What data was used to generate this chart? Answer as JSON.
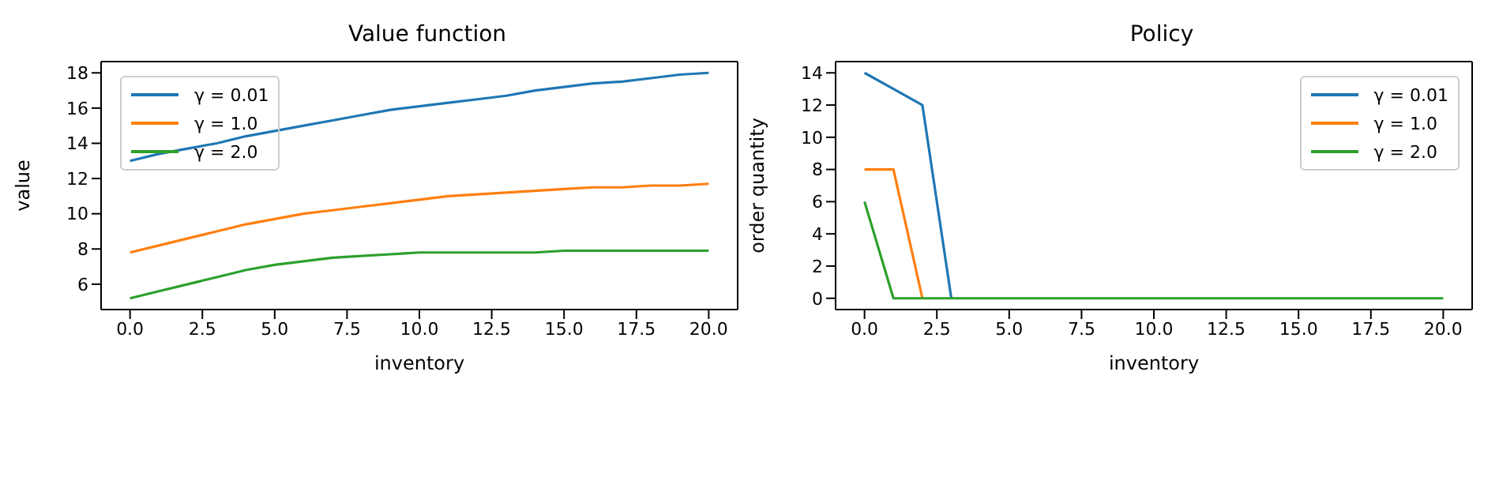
{
  "chart_data": [
    {
      "type": "line",
      "title": "Value function",
      "xlabel": "inventory",
      "ylabel": "value",
      "x": [
        0,
        1,
        2,
        3,
        4,
        5,
        6,
        7,
        8,
        9,
        10,
        11,
        12,
        13,
        14,
        15,
        16,
        17,
        18,
        19,
        20
      ],
      "series": [
        {
          "name": "γ = 0.01",
          "color": "#1f77b4",
          "values": [
            13.0,
            13.4,
            13.7,
            14.0,
            14.4,
            14.7,
            15.0,
            15.3,
            15.6,
            15.9,
            16.1,
            16.3,
            16.5,
            16.7,
            17.0,
            17.2,
            17.4,
            17.5,
            17.7,
            17.9,
            18.0
          ]
        },
        {
          "name": "γ = 1.0",
          "color": "#ff7f0e",
          "values": [
            7.8,
            8.2,
            8.6,
            9.0,
            9.4,
            9.7,
            10.0,
            10.2,
            10.4,
            10.6,
            10.8,
            11.0,
            11.1,
            11.2,
            11.3,
            11.4,
            11.5,
            11.5,
            11.6,
            11.6,
            11.7
          ]
        },
        {
          "name": "γ = 2.0",
          "color": "#2ca02c",
          "values": [
            5.2,
            5.6,
            6.0,
            6.4,
            6.8,
            7.1,
            7.3,
            7.5,
            7.6,
            7.7,
            7.8,
            7.8,
            7.8,
            7.8,
            7.8,
            7.9,
            7.9,
            7.9,
            7.9,
            7.9,
            7.9
          ]
        }
      ],
      "xlim": [
        -1,
        21
      ],
      "ylim": [
        4.56,
        18.64
      ],
      "xticks": [
        {
          "value": 0,
          "label": "0.0"
        },
        {
          "value": 2.5,
          "label": "2.5"
        },
        {
          "value": 5,
          "label": "5.0"
        },
        {
          "value": 7.5,
          "label": "7.5"
        },
        {
          "value": 10,
          "label": "10.0"
        },
        {
          "value": 12.5,
          "label": "12.5"
        },
        {
          "value": 15,
          "label": "15.0"
        },
        {
          "value": 17.5,
          "label": "17.5"
        },
        {
          "value": 20,
          "label": "20.0"
        }
      ],
      "yticks": [
        6,
        8,
        10,
        12,
        14,
        16,
        18
      ],
      "legend": "top left"
    },
    {
      "type": "line",
      "title": "Policy",
      "xlabel": "inventory",
      "ylabel": "order quantity",
      "x": [
        0,
        1,
        2,
        3,
        4,
        5,
        6,
        7,
        8,
        9,
        10,
        11,
        12,
        13,
        14,
        15,
        16,
        17,
        18,
        19,
        20
      ],
      "series": [
        {
          "name": "γ = 0.01",
          "color": "#1f77b4",
          "values": [
            14,
            13,
            12,
            0,
            null,
            null,
            null,
            null,
            null,
            null,
            null,
            null,
            null,
            null,
            null,
            null,
            null,
            null,
            null,
            null,
            null
          ]
        },
        {
          "name": "γ = 1.0",
          "color": "#ff7f0e",
          "values": [
            8,
            8,
            0,
            null,
            null,
            null,
            null,
            null,
            null,
            null,
            null,
            null,
            null,
            null,
            null,
            null,
            null,
            null,
            null,
            null,
            null
          ]
        },
        {
          "name": "γ = 2.0",
          "color": "#2ca02c",
          "values": [
            6,
            0,
            0,
            0,
            0,
            0,
            0,
            0,
            0,
            0,
            0,
            0,
            0,
            0,
            0,
            0,
            0,
            0,
            0,
            0,
            0
          ]
        }
      ],
      "xlim": [
        -1,
        21
      ],
      "ylim": [
        -0.7,
        14.7
      ],
      "xticks": [
        {
          "value": 0,
          "label": "0.0"
        },
        {
          "value": 2.5,
          "label": "2.5"
        },
        {
          "value": 5,
          "label": "5.0"
        },
        {
          "value": 7.5,
          "label": "7.5"
        },
        {
          "value": 10,
          "label": "10.0"
        },
        {
          "value": 12.5,
          "label": "12.5"
        },
        {
          "value": 15,
          "label": "15.0"
        },
        {
          "value": 17.5,
          "label": "17.5"
        },
        {
          "value": 20,
          "label": "20.0"
        }
      ],
      "yticks": [
        0,
        2,
        4,
        6,
        8,
        10,
        12,
        14
      ],
      "legend": "top right"
    }
  ]
}
